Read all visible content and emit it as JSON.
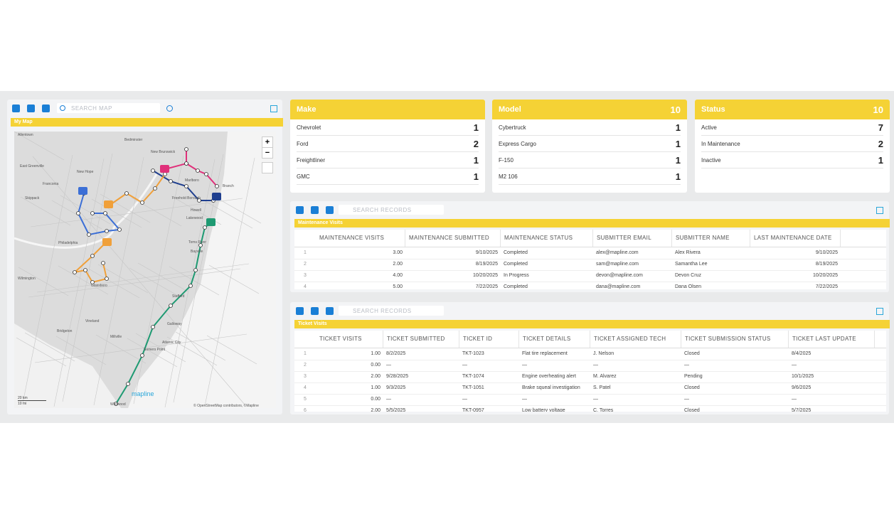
{
  "map_panel": {
    "search_placeholder": "SEARCH MAP",
    "title": "My Map",
    "zoom_in": "+",
    "zoom_out": "−",
    "scale_km": "20 km",
    "scale_mi": "10 mi",
    "logo": "mapline",
    "attribution": "© OpenStreetMap contributors, ©Mapline",
    "places": [
      "Allentown",
      "Bedminster",
      "New Brunswick",
      "East Greenville",
      "New Hope",
      "Franconia",
      "Skippack",
      "Marlboro",
      "Freehold Borough",
      "Branch",
      "Howell",
      "Lakewood",
      "Philadelphia",
      "Toms River",
      "Bayville",
      "Wilmington",
      "Glassboro",
      "Stafford",
      "Vineland",
      "Bridgeton",
      "Millville",
      "Galloway",
      "Atlantic City",
      "Somers Point",
      "Wildwood"
    ]
  },
  "summary_cards": [
    {
      "title": "Make",
      "rows": [
        {
          "label": "Chevrolet",
          "count": "1"
        },
        {
          "label": "Ford",
          "count": "2"
        },
        {
          "label": "Freightliner",
          "count": "1"
        },
        {
          "label": "GMC",
          "count": "1"
        }
      ]
    },
    {
      "title": "Model",
      "total": "10",
      "rows": [
        {
          "label": "Cybertruck",
          "count": "1"
        },
        {
          "label": "Express Cargo",
          "count": "1"
        },
        {
          "label": "F-150",
          "count": "1"
        },
        {
          "label": "M2 106",
          "count": "1"
        }
      ]
    },
    {
      "title": "Status",
      "total": "10",
      "rows": [
        {
          "label": "Active",
          "count": "7"
        },
        {
          "label": "In Maintenance",
          "count": "2"
        },
        {
          "label": "Inactive",
          "count": "1"
        }
      ]
    }
  ],
  "tables": [
    {
      "search_placeholder": "SEARCH RECORDS",
      "title": "Maintenance Visits",
      "columns": [
        "MAINTENANCE VISITS",
        "MAINTENANCE SUBMITTED",
        "MAINTENANCE STATUS",
        "SUBMITTER EMAIL",
        "SUBMITTER NAME",
        "LAST MAINTENANCE DATE"
      ],
      "rows": [
        [
          "1",
          "3.00",
          "9/10/2025",
          "Completed",
          "alex@mapline.com",
          "Alex Rivera",
          "9/10/2025"
        ],
        [
          "2",
          "2.00",
          "8/19/2025",
          "Completed",
          "sam@mapline.com",
          "Samantha Lee",
          "8/19/2025"
        ],
        [
          "3",
          "4.00",
          "10/20/2025",
          "In Progress",
          "devon@mapline.com",
          "Devon Cruz",
          "10/20/2025"
        ],
        [
          "4",
          "5.00",
          "7/22/2025",
          "Completed",
          "dana@mapline.com",
          "Dana Olsen",
          "7/22/2025"
        ]
      ]
    },
    {
      "search_placeholder": "SEARCH RECORDS",
      "title": "Ticket Visits",
      "columns": [
        "TICKET VISITS",
        "TICKET SUBMITTED",
        "TICKET ID",
        "TICKET DETAILS",
        "TICKET ASSIGNED TECH",
        "TICKET SUBMISSION STATUS",
        "TICKET LAST UPDATE"
      ],
      "rows": [
        [
          "1",
          "1.00",
          "8/2/2025",
          "TKT-1023",
          "Flat tire replacement",
          "J. Nelson",
          "Closed",
          "8/4/2025"
        ],
        [
          "2",
          "0.00",
          "—",
          "—",
          "—",
          "—",
          "—",
          "—"
        ],
        [
          "3",
          "2.00",
          "9/28/2025",
          "TKT-1074",
          "Engine overheating alert",
          "M. Alvarez",
          "Pending",
          "10/1/2025"
        ],
        [
          "4",
          "1.00",
          "9/3/2025",
          "TKT-1051",
          "Brake squeal investigation",
          "S. Patel",
          "Closed",
          "9/6/2025"
        ],
        [
          "5",
          "0.00",
          "—",
          "—",
          "—",
          "—",
          "—",
          "—"
        ],
        [
          "6",
          "2.00",
          "5/5/2025",
          "TKT-0957",
          "Low battery voltage",
          "C. Torres",
          "Closed",
          "5/7/2025"
        ]
      ]
    }
  ]
}
